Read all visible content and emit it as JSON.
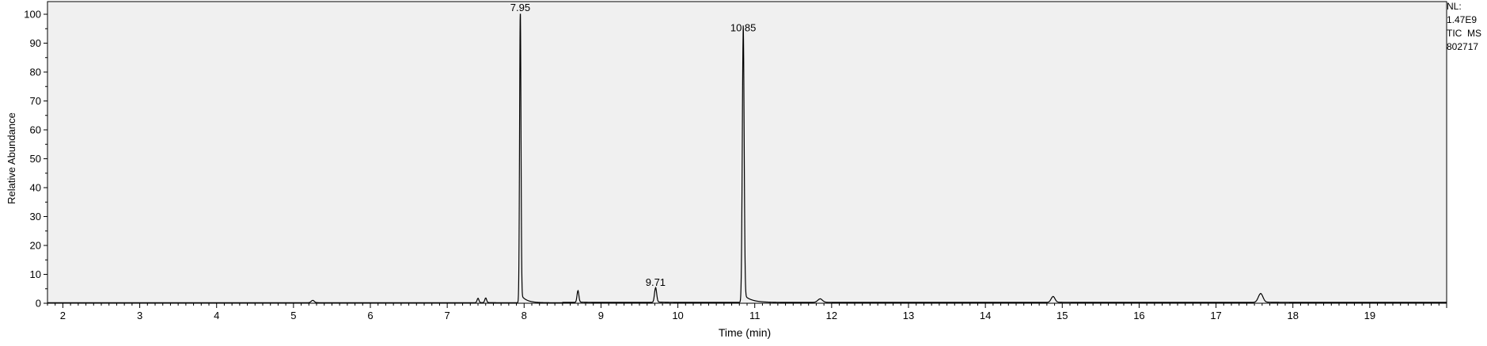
{
  "chart_data": {
    "type": "line",
    "xlabel": "Time (min)",
    "ylabel": "Relative Abundance",
    "xlim": [
      1.8,
      20.0
    ],
    "ylim": [
      0,
      100
    ],
    "x_ticks": [
      2,
      3,
      4,
      5,
      6,
      7,
      8,
      9,
      10,
      11,
      12,
      13,
      14,
      15,
      16,
      17,
      18,
      19
    ],
    "y_ticks": [
      0,
      10,
      20,
      30,
      40,
      50,
      60,
      70,
      80,
      90,
      100
    ],
    "grid": false,
    "plot_background": "#f0f0f0",
    "line_color": "#000000",
    "annotations": [
      {
        "x": 7.95,
        "y": 100,
        "text": "7.95"
      },
      {
        "x": 9.71,
        "y": 5,
        "text": "9.71"
      },
      {
        "x": 10.85,
        "y": 93,
        "text": "10.85"
      }
    ],
    "peaks": [
      {
        "rt": 5.25,
        "height": 0.8,
        "width": 0.02
      },
      {
        "rt": 7.4,
        "height": 1.5,
        "width": 0.012
      },
      {
        "rt": 7.5,
        "height": 1.6,
        "width": 0.012
      },
      {
        "rt": 7.95,
        "height": 100,
        "width": 0.009
      },
      {
        "rt": 8.7,
        "height": 4.0,
        "width": 0.012
      },
      {
        "rt": 9.71,
        "height": 5.0,
        "width": 0.014
      },
      {
        "rt": 10.85,
        "height": 93,
        "width": 0.012
      },
      {
        "rt": 11.85,
        "height": 1.2,
        "width": 0.03
      },
      {
        "rt": 14.88,
        "height": 2.0,
        "width": 0.025
      },
      {
        "rt": 17.58,
        "height": 3.0,
        "width": 0.03
      }
    ]
  },
  "side_info": {
    "line1": "NL:",
    "line2": "1.47E9",
    "line3": "TIC  MS",
    "line4": "802717"
  }
}
